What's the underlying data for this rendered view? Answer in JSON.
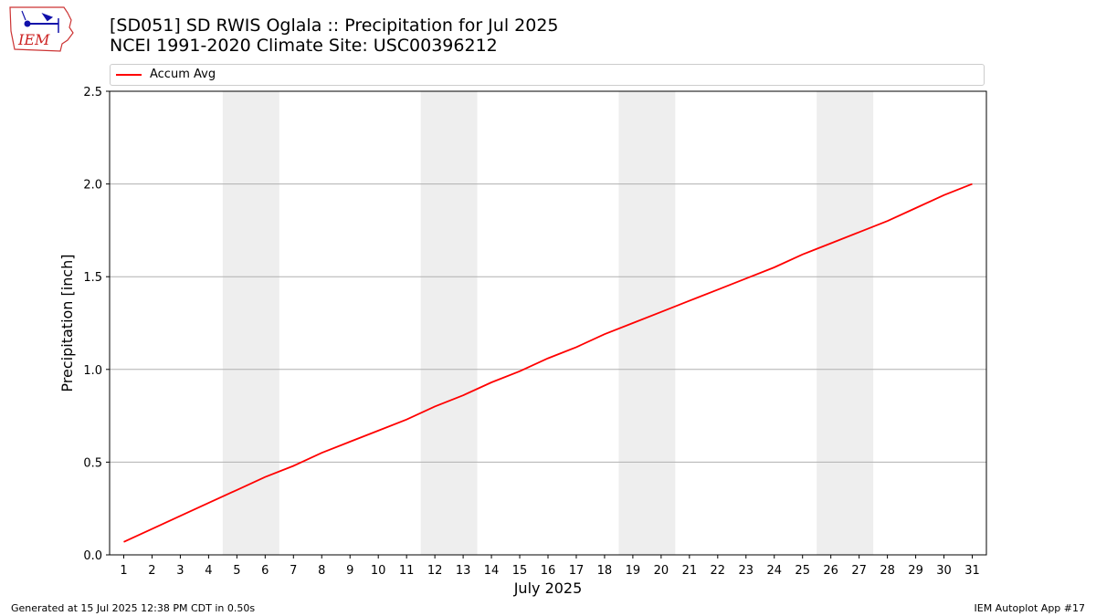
{
  "header": {
    "title_line1": "[SD051] SD RWIS Oglala :: Precipitation for Jul 2025",
    "title_line2": "NCEI 1991-2020 Climate Site: USC00396212",
    "logo_text": "IEM"
  },
  "footer": {
    "left": "Generated at 15 Jul 2025 12:38 PM CDT in 0.50s",
    "right": "IEM Autoplot App #17"
  },
  "chart_data": {
    "type": "line",
    "xlabel": "July 2025",
    "ylabel": "Precipitation [inch]",
    "xlim": [
      0.5,
      31.5
    ],
    "ylim": [
      0,
      2.5
    ],
    "y_ticks": [
      "0.0",
      "0.5",
      "1.0",
      "1.5",
      "2.0",
      "2.5"
    ],
    "grid": "horizontal",
    "legend_position": "top",
    "weekend_shading": [
      [
        5,
        6
      ],
      [
        12,
        13
      ],
      [
        19,
        20
      ],
      [
        26,
        27
      ]
    ],
    "series": [
      {
        "name": "Accum Avg",
        "color": "#ff0000",
        "x": [
          1,
          2,
          3,
          4,
          5,
          6,
          7,
          8,
          9,
          10,
          11,
          12,
          13,
          14,
          15,
          16,
          17,
          18,
          19,
          20,
          21,
          22,
          23,
          24,
          25,
          26,
          27,
          28,
          29,
          30,
          31
        ],
        "values": [
          0.07,
          0.14,
          0.21,
          0.28,
          0.35,
          0.42,
          0.48,
          0.55,
          0.61,
          0.67,
          0.73,
          0.8,
          0.86,
          0.93,
          0.99,
          1.06,
          1.12,
          1.19,
          1.25,
          1.31,
          1.37,
          1.43,
          1.49,
          1.55,
          1.62,
          1.68,
          1.74,
          1.8,
          1.87,
          1.94,
          2.0
        ]
      }
    ]
  }
}
